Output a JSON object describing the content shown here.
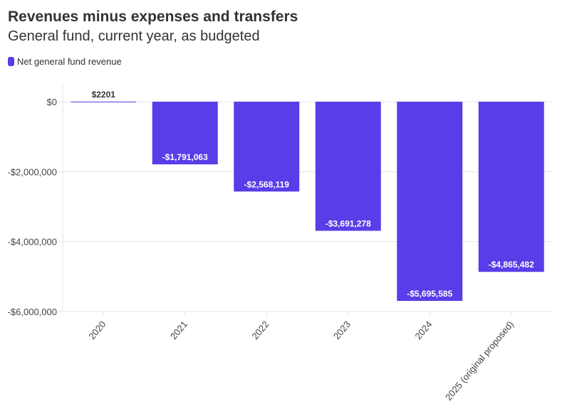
{
  "chart_data": {
    "type": "bar",
    "title": "Revenues minus expenses and transfers",
    "subtitle": "General fund, current year, as budgeted",
    "legend": [
      {
        "name": "Net general fund revenue",
        "color": "#5a3de8"
      }
    ],
    "legend_placement": "top-left",
    "categories": [
      "2020",
      "2021",
      "2022",
      "2023",
      "2024",
      "2025 (original proposed)"
    ],
    "series": [
      {
        "name": "Net general fund revenue",
        "values": [
          2201,
          -1791063,
          -2568119,
          -3691278,
          -5695585,
          -4865482
        ]
      }
    ],
    "data_labels": [
      "$2201",
      "-$1,791,063",
      "-$2,568,119",
      "-$3,691,278",
      "-$5,695,585",
      "-$4,865,482"
    ],
    "yticks": [
      0,
      -2000000,
      -4000000,
      -6000000
    ],
    "ytick_labels": [
      "$0",
      "-$2,000,000",
      "-$4,000,000",
      "-$6,000,000"
    ],
    "ylim": [
      -6000000,
      500000
    ],
    "grid": true,
    "xlabel": "",
    "ylabel": ""
  }
}
